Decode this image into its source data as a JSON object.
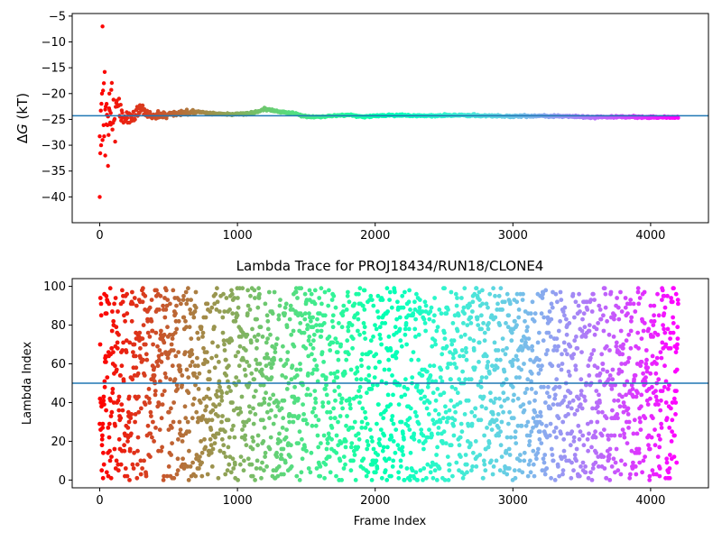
{
  "chart_data": [
    {
      "type": "scatter",
      "title": "",
      "xlabel": "",
      "ylabel": "ΔG (kT)",
      "ylabel_parts": {
        "delta": "Δ",
        "var": "G",
        "unit": " (kT)"
      },
      "xlim": [
        -200,
        4420
      ],
      "ylim": [
        -45,
        -4.5
      ],
      "xticks": [
        0,
        1000,
        2000,
        3000,
        4000
      ],
      "yticks": [
        -40,
        -35,
        -30,
        -25,
        -20,
        -15,
        -10,
        -5
      ],
      "xtick_labels": [
        "0",
        "1000",
        "2000",
        "3000",
        "4000"
      ],
      "ytick_labels": [
        "−40",
        "−35",
        "−30",
        "−25",
        "−20",
        "−15",
        "−10",
        "−5"
      ],
      "hline": -24.3,
      "hline_color": "#1f77b4",
      "colormap": "rainbow (red at frame 0 → violet at last frame)",
      "n_frames": 4200,
      "series": [
        {
          "x": [
            0,
            10,
            20,
            30,
            40,
            50,
            60,
            70,
            80,
            100,
            120,
            150,
            200,
            250,
            300,
            350,
            400,
            500,
            600,
            700,
            800,
            900,
            1000,
            1100,
            1200,
            1300,
            1400,
            1500,
            1600,
            1700,
            1800,
            1900,
            2000,
            2200,
            2400,
            2600,
            2800,
            3000,
            3200,
            3400,
            3600,
            3800,
            4000,
            4200
          ],
          "y": [
            -40,
            -30,
            -7,
            -18,
            -32,
            -22,
            -34,
            -20,
            -26,
            -23,
            -21,
            -24,
            -25,
            -24,
            -23,
            -24,
            -24.5,
            -24,
            -23.8,
            -23.5,
            -23.8,
            -24,
            -24,
            -23.8,
            -23,
            -23.5,
            -23.8,
            -24.5,
            -24.5,
            -24.3,
            -24.1,
            -24.5,
            -24.3,
            -24.2,
            -24.3,
            -24.2,
            -24.3,
            -24.4,
            -24.3,
            -24.4,
            -24.6,
            -24.5,
            -24.6,
            -24.6
          ]
        }
      ]
    },
    {
      "type": "scatter",
      "title": "Lambda Trace for PROJ18434/RUN18/CLONE4",
      "xlabel": "Frame Index",
      "ylabel": "Lambda Index",
      "xlim": [
        -200,
        4420
      ],
      "ylim": [
        -4,
        104
      ],
      "xticks": [
        0,
        1000,
        2000,
        3000,
        4000
      ],
      "yticks": [
        0,
        20,
        40,
        60,
        80,
        100
      ],
      "xtick_labels": [
        "0",
        "1000",
        "2000",
        "3000",
        "4000"
      ],
      "ytick_labels": [
        "0",
        "20",
        "40",
        "60",
        "80",
        "100"
      ],
      "hline": 50,
      "hline_color": "#1f77b4",
      "colormap": "rainbow (red at frame 0 → violet at last frame)",
      "n_frames": 4200,
      "lambda_range": [
        0,
        99
      ],
      "series": [
        {
          "description_of_distribution": "uniform random lambda index 0–99 across frames 0–4200"
        }
      ]
    }
  ]
}
